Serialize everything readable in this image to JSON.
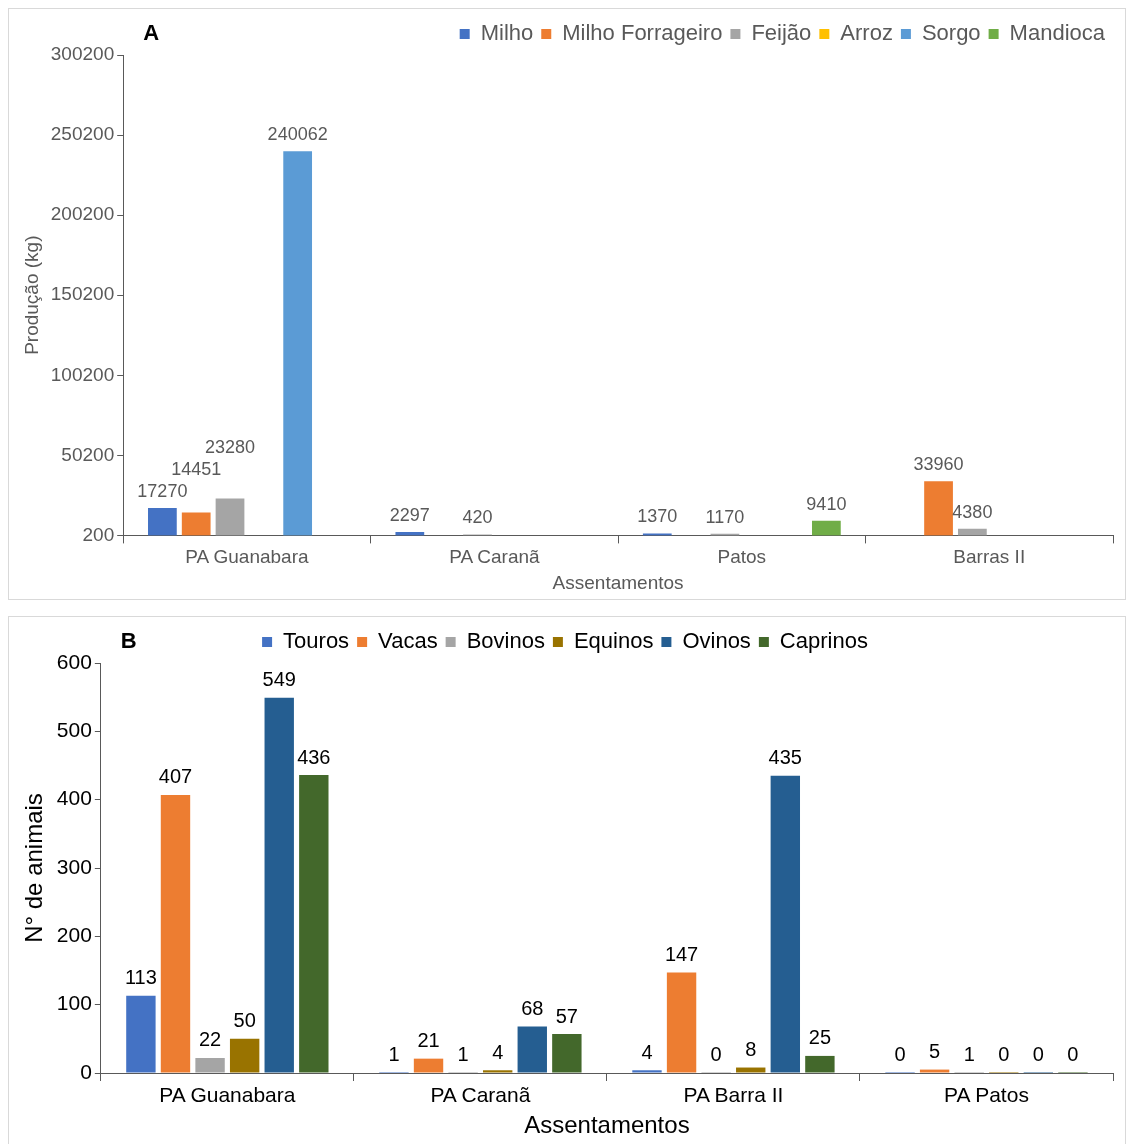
{
  "chart_data": [
    {
      "type": "bar",
      "title": "A",
      "xlabel": "Assentamentos",
      "ylabel": "Produção (kg)",
      "categories": [
        "PA Guanabara",
        "PA Caranã",
        "Patos",
        "Barras II"
      ],
      "series": [
        {
          "name": "Milho",
          "color": "#4472c4",
          "values": [
            17270,
            2297,
            1370,
            null
          ]
        },
        {
          "name": "Milho Forrageiro",
          "color": "#ed7d31",
          "values": [
            14451,
            null,
            null,
            33960
          ]
        },
        {
          "name": "Feijão",
          "color": "#a5a5a5",
          "values": [
            23280,
            420,
            1170,
            4380
          ]
        },
        {
          "name": "Arroz",
          "color": "#ffc000",
          "values": [
            null,
            null,
            null,
            null
          ]
        },
        {
          "name": "Sorgo",
          "color": "#5b9bd5",
          "values": [
            240062,
            null,
            null,
            null
          ]
        },
        {
          "name": "Mandioca",
          "color": "#70ad47",
          "values": [
            null,
            null,
            9410,
            null
          ]
        }
      ],
      "ylim": [
        200,
        300200
      ],
      "yticks": [
        200,
        50200,
        100200,
        150200,
        200200,
        250200,
        300200
      ],
      "grid": false,
      "legend": "top right",
      "data_labels": true
    },
    {
      "type": "bar",
      "title": "B",
      "xlabel": "Assentamentos",
      "ylabel": "N° de animais",
      "categories": [
        "PA Guanabara",
        "PA Caranã",
        "PA Barra II",
        "PA Patos"
      ],
      "series": [
        {
          "name": "Touros",
          "color": "#4472c4",
          "values": [
            113,
            1,
            4,
            0
          ]
        },
        {
          "name": "Vacas",
          "color": "#ed7d31",
          "values": [
            407,
            21,
            147,
            5
          ]
        },
        {
          "name": "Bovinos",
          "color": "#a5a5a5",
          "values": [
            22,
            1,
            0,
            1
          ]
        },
        {
          "name": "Equinos",
          "color": "#997300",
          "values": [
            50,
            4,
            8,
            0
          ]
        },
        {
          "name": "Ovinos",
          "color": "#255e91",
          "values": [
            549,
            68,
            435,
            0
          ]
        },
        {
          "name": "Caprinos",
          "color": "#43682b",
          "values": [
            436,
            57,
            25,
            0
          ]
        }
      ],
      "ylim": [
        0,
        600
      ],
      "yticks": [
        0,
        100,
        200,
        300,
        400,
        500,
        600
      ],
      "grid": false,
      "legend": "top",
      "data_labels": true
    }
  ]
}
